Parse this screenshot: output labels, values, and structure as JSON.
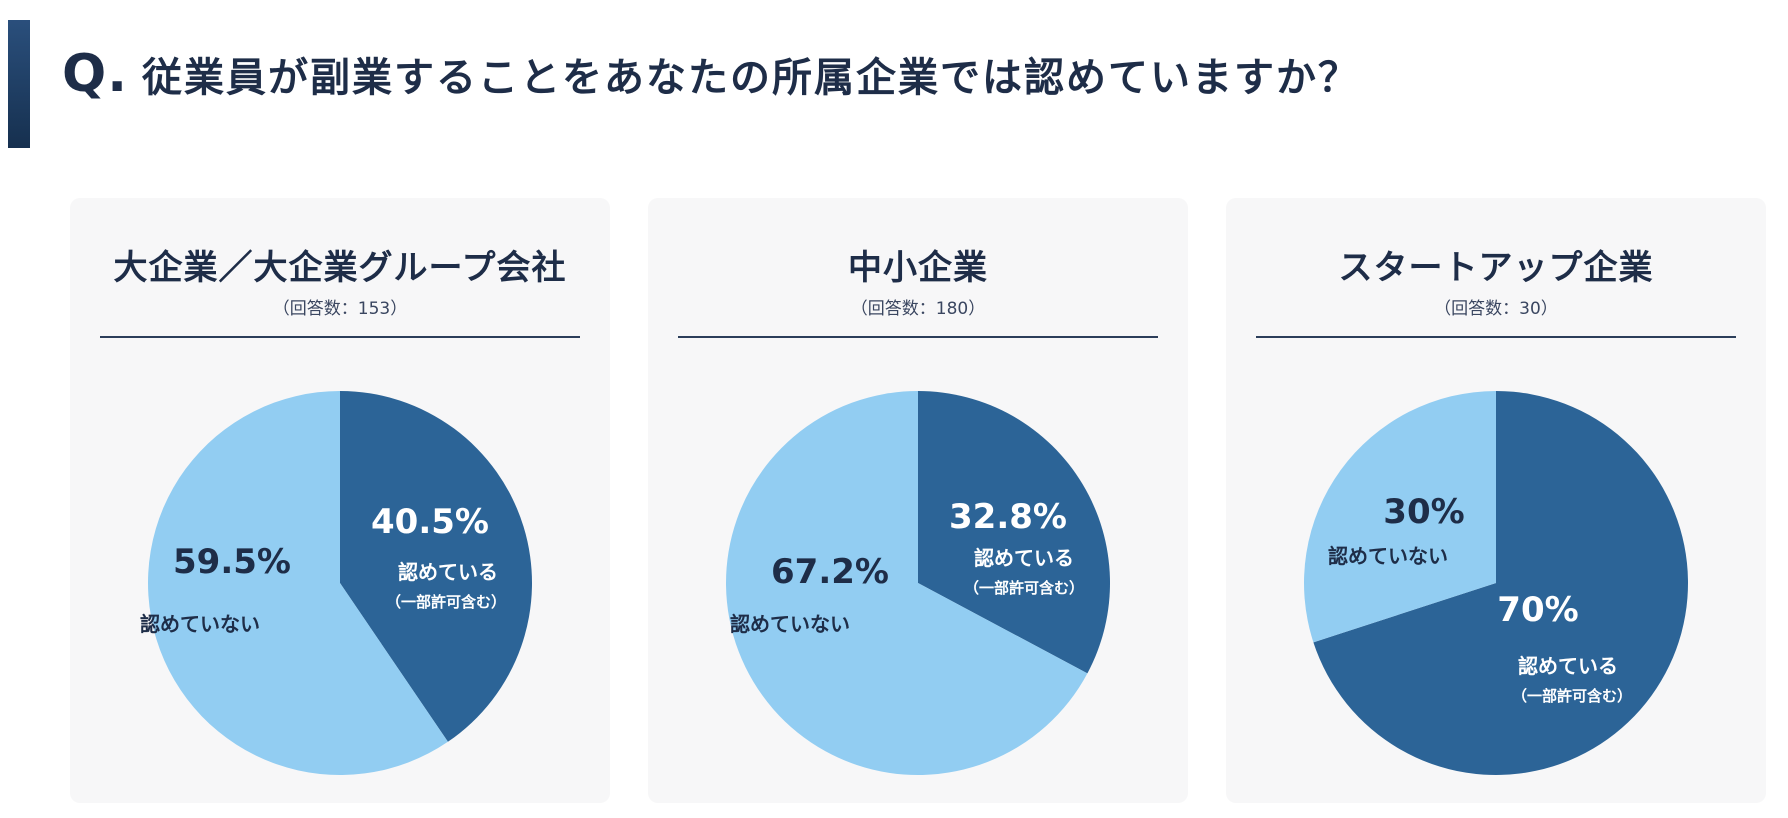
{
  "question": {
    "prefix": "Q.",
    "text": "従業員が副業することをあなたの所属企業では認めていますか？"
  },
  "colors": {
    "allowed": "#2c6497",
    "not_allowed": "#92cdf2",
    "accent": "#1e3a5f"
  },
  "chart_data": [
    {
      "type": "pie",
      "title": "大企業／大企業グループ会社",
      "subtitle": "（回答数：153）",
      "slices": [
        {
          "label": "認めている",
          "sublabel": "（一部許可含む）",
          "value": 40.5,
          "display": "40.5%"
        },
        {
          "label": "認めていない",
          "value": 59.5,
          "display": "59.5%"
        }
      ]
    },
    {
      "type": "pie",
      "title": "中小企業",
      "subtitle": "（回答数：180）",
      "slices": [
        {
          "label": "認めている",
          "sublabel": "（一部許可含む）",
          "value": 32.8,
          "display": "32.8%"
        },
        {
          "label": "認めていない",
          "value": 67.2,
          "display": "67.2%"
        }
      ]
    },
    {
      "type": "pie",
      "title": "スタートアップ企業",
      "subtitle": "（回答数：30）",
      "slices": [
        {
          "label": "認めている",
          "sublabel": "（一部許可含む）",
          "value": 70,
          "display": "70%"
        },
        {
          "label": "認めていない",
          "value": 30,
          "display": "30%"
        }
      ]
    }
  ]
}
